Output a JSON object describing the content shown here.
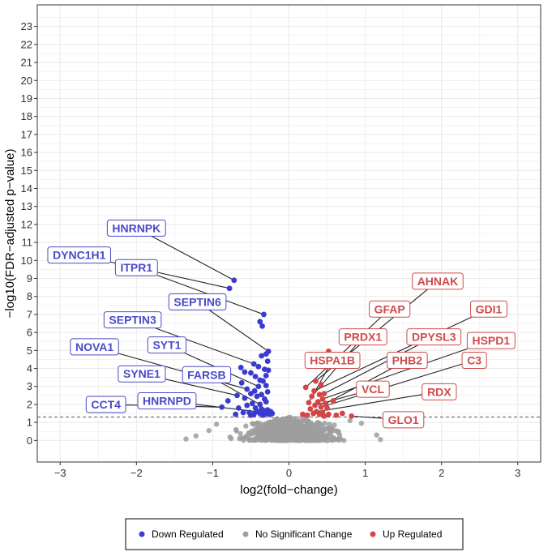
{
  "colors": {
    "down": "#3a3ad0",
    "ns": "#9e9e9e",
    "up": "#d64545",
    "down_label": "#4a4ac8",
    "up_label": "#d04a4a",
    "grid": "#ebebeb",
    "panel_border": "#333333"
  },
  "chart_data": {
    "type": "scatter",
    "title": "",
    "xlabel": "log2(fold−change)",
    "ylabel": "−log10(FDR−adjusted  p−value)",
    "xlim": [
      -3.3,
      3.3
    ],
    "ylim": [
      -1.2,
      24.2
    ],
    "x_ticks": [
      -3,
      -2,
      -1,
      0,
      1,
      2,
      3
    ],
    "x_tick_labels": [
      "−3",
      "−2",
      "−1",
      "0",
      "1",
      "2",
      "3"
    ],
    "y_ticks": [
      0,
      1,
      2,
      3,
      4,
      5,
      6,
      7,
      8,
      9,
      10,
      11,
      12,
      13,
      14,
      15,
      16,
      17,
      18,
      19,
      20,
      21,
      22,
      23
    ],
    "threshold_y": 1.3,
    "legend": {
      "position": "bottom",
      "entries": [
        {
          "name": "Down Regulated",
          "color_key": "down"
        },
        {
          "name": "No Significant Change",
          "color_key": "ns"
        },
        {
          "name": "Up Regulated",
          "color_key": "up"
        }
      ]
    },
    "series": [
      {
        "name": "Down Regulated",
        "color_key": "down",
        "points": [
          [
            -0.72,
            8.9
          ],
          [
            -0.78,
            8.45
          ],
          [
            -0.33,
            7.0
          ],
          [
            -0.38,
            6.6
          ],
          [
            -0.35,
            6.35
          ],
          [
            -0.27,
            4.95
          ],
          [
            -0.3,
            4.8
          ],
          [
            -0.36,
            4.7
          ],
          [
            -0.28,
            4.4
          ],
          [
            -0.46,
            4.25
          ],
          [
            -0.63,
            4.05
          ],
          [
            -0.4,
            4.1
          ],
          [
            -0.32,
            3.95
          ],
          [
            -0.27,
            3.9
          ],
          [
            -0.5,
            3.75
          ],
          [
            -0.58,
            3.8
          ],
          [
            -0.3,
            3.6
          ],
          [
            -0.44,
            3.55
          ],
          [
            -0.62,
            3.2
          ],
          [
            -0.38,
            3.35
          ],
          [
            -0.34,
            3.3
          ],
          [
            -0.3,
            3.05
          ],
          [
            -0.4,
            3.0
          ],
          [
            -0.55,
            2.85
          ],
          [
            -0.45,
            2.75
          ],
          [
            -0.5,
            2.6
          ],
          [
            -0.36,
            2.55
          ],
          [
            -0.28,
            2.7
          ],
          [
            -0.68,
            2.5
          ],
          [
            -0.42,
            2.45
          ],
          [
            -0.58,
            2.35
          ],
          [
            -0.32,
            2.3
          ],
          [
            -0.8,
            2.2
          ],
          [
            -0.48,
            2.05
          ],
          [
            -0.38,
            2.0
          ],
          [
            -0.3,
            2.15
          ],
          [
            -0.55,
            1.95
          ],
          [
            -0.88,
            1.85
          ],
          [
            -0.66,
            1.8
          ],
          [
            -0.44,
            1.8
          ],
          [
            -0.36,
            1.75
          ],
          [
            -0.28,
            1.7
          ],
          [
            -0.32,
            1.65
          ],
          [
            -0.24,
            1.6
          ],
          [
            -0.42,
            1.6
          ],
          [
            -0.52,
            1.55
          ],
          [
            -0.6,
            1.55
          ],
          [
            -0.38,
            1.5
          ],
          [
            -0.3,
            1.5
          ],
          [
            -0.7,
            1.45
          ],
          [
            -0.46,
            1.45
          ],
          [
            -0.26,
            1.45
          ],
          [
            -0.34,
            1.4
          ],
          [
            -0.5,
            1.4
          ],
          [
            -0.22,
            1.5
          ]
        ]
      },
      {
        "name": "Up Regulated",
        "color_key": "up",
        "points": [
          [
            0.52,
            4.95
          ],
          [
            0.48,
            4.45
          ],
          [
            0.35,
            3.3
          ],
          [
            0.42,
            3.1
          ],
          [
            0.33,
            2.75
          ],
          [
            0.4,
            2.55
          ],
          [
            0.46,
            2.6
          ],
          [
            0.22,
            2.95
          ],
          [
            0.3,
            2.45
          ],
          [
            0.44,
            2.3
          ],
          [
            0.38,
            2.15
          ],
          [
            0.26,
            2.1
          ],
          [
            0.48,
            2.05
          ],
          [
            0.58,
            2.2
          ],
          [
            0.34,
            1.95
          ],
          [
            0.42,
            1.85
          ],
          [
            0.5,
            1.8
          ],
          [
            0.28,
            1.75
          ],
          [
            0.36,
            1.6
          ],
          [
            0.44,
            1.55
          ],
          [
            0.32,
            1.5
          ],
          [
            0.4,
            1.45
          ],
          [
            0.52,
            1.45
          ],
          [
            0.62,
            1.4
          ],
          [
            0.24,
            1.4
          ],
          [
            0.82,
            1.35
          ],
          [
            0.46,
            1.35
          ],
          [
            0.18,
            1.45
          ],
          [
            0.7,
            1.5
          ]
        ]
      },
      {
        "name": "No Significant Change",
        "color_key": "ns",
        "generated": true,
        "count": 700,
        "x_range": [
          -1.5,
          1.3
        ],
        "y_range": [
          0,
          1.29
        ]
      }
    ],
    "labels": [
      {
        "text": "HNRNPK",
        "group": "down",
        "x": -2.0,
        "y": 11.8,
        "px": -0.72,
        "py": 8.9
      },
      {
        "text": "DYNC1H1",
        "group": "down",
        "x": -2.75,
        "y": 10.3,
        "px": -0.78,
        "py": 8.45
      },
      {
        "text": "ITPR1",
        "group": "down",
        "x": -2.0,
        "y": 9.6,
        "px": -0.33,
        "py": 7.0
      },
      {
        "text": "SEPTIN6",
        "group": "down",
        "x": -1.2,
        "y": 7.7,
        "px": -0.27,
        "py": 4.95
      },
      {
        "text": "SEPTIN3",
        "group": "down",
        "x": -2.05,
        "y": 6.7,
        "px": -0.46,
        "py": 4.25
      },
      {
        "text": "SYT1",
        "group": "down",
        "x": -1.6,
        "y": 5.3,
        "px": -0.4,
        "py": 3.0
      },
      {
        "text": "NOVA1",
        "group": "down",
        "x": -2.55,
        "y": 5.2,
        "px": -0.55,
        "py": 2.85
      },
      {
        "text": "SYNE1",
        "group": "down",
        "x": -1.93,
        "y": 3.7,
        "px": -0.68,
        "py": 2.5
      },
      {
        "text": "FARSB",
        "group": "down",
        "x": -1.08,
        "y": 3.65,
        "px": -0.38,
        "py": 2.0
      },
      {
        "text": "CCT4",
        "group": "down",
        "x": -2.4,
        "y": 2.0,
        "px": -0.88,
        "py": 1.85
      },
      {
        "text": "HNRNPD",
        "group": "down",
        "x": -1.6,
        "y": 2.2,
        "px": -0.42,
        "py": 1.6
      },
      {
        "text": "AHNAK",
        "group": "up",
        "x": 1.95,
        "y": 8.85,
        "px": 0.35,
        "py": 3.3
      },
      {
        "text": "GFAP",
        "group": "up",
        "x": 1.32,
        "y": 7.3,
        "px": 0.22,
        "py": 2.95
      },
      {
        "text": "GDI1",
        "group": "up",
        "x": 2.62,
        "y": 7.3,
        "px": 0.33,
        "py": 2.75
      },
      {
        "text": "PRDX1",
        "group": "up",
        "x": 0.97,
        "y": 5.75,
        "px": 0.3,
        "py": 2.45
      },
      {
        "text": "DPYSL3",
        "group": "up",
        "x": 1.9,
        "y": 5.75,
        "px": 0.46,
        "py": 2.6
      },
      {
        "text": "HSPD1",
        "group": "up",
        "x": 2.65,
        "y": 5.55,
        "px": 0.44,
        "py": 2.3
      },
      {
        "text": "HSPA1B",
        "group": "up",
        "x": 0.57,
        "y": 4.45,
        "px": 0.26,
        "py": 2.1
      },
      {
        "text": "PHB2",
        "group": "up",
        "x": 1.55,
        "y": 4.45,
        "px": 0.48,
        "py": 2.05
      },
      {
        "text": "C3",
        "group": "up",
        "x": 2.43,
        "y": 4.45,
        "px": 0.42,
        "py": 1.85
      },
      {
        "text": "VCL",
        "group": "up",
        "x": 1.1,
        "y": 2.85,
        "px": 0.34,
        "py": 1.95
      },
      {
        "text": "RDX",
        "group": "up",
        "x": 1.97,
        "y": 2.7,
        "px": 0.36,
        "py": 1.6
      },
      {
        "text": "GLO1",
        "group": "up",
        "x": 1.5,
        "y": 1.15,
        "px": 0.82,
        "py": 1.35
      }
    ]
  }
}
